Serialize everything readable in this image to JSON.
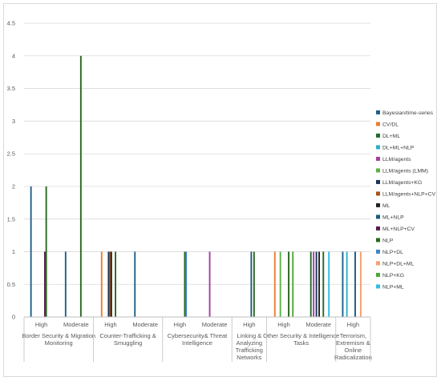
{
  "chart_data": {
    "type": "bar",
    "title": "",
    "xlabel": "",
    "ylabel": "",
    "ylim": [
      0,
      4.5
    ],
    "yticks": [
      "0",
      "0.5",
      "1",
      "1.5",
      "2",
      "2.5",
      "3",
      "3.5",
      "4",
      "4.5"
    ],
    "grid": true,
    "legend_position": "right",
    "groups": [
      {
        "label": "Border Security & Migration Monitoring",
        "lines": [
          "Border Security & Migration",
          "Monitoring"
        ],
        "subs": [
          "High",
          "Moderate"
        ]
      },
      {
        "label": "Counter-Trafficking & Smuggling",
        "lines": [
          "Counter-Trafficking &",
          "Smuggling"
        ],
        "subs": [
          "High",
          "Moderate"
        ]
      },
      {
        "label": "Cybersecurity& Threat Intelligence",
        "lines": [
          "Cybersecurity& Threat",
          "Intelligence"
        ],
        "subs": [
          "High",
          "Moderate"
        ]
      },
      {
        "label": "Linking & Analyzing Trafficking Networks",
        "lines": [
          "Linking &",
          "Analyzing",
          "Trafficking",
          "Networks"
        ],
        "subs": [
          "High"
        ]
      },
      {
        "label": "Other Security & Intelligence Tasks",
        "lines": [
          "Other Security & Intelligence",
          "Tasks"
        ],
        "subs": [
          "High",
          "Moderate"
        ]
      },
      {
        "label": "Terrorism, Extremism & Online Radicalization",
        "lines": [
          "Terrorism,",
          "Extremism &",
          "Online",
          "Radicalization"
        ],
        "subs": [
          "High"
        ]
      }
    ],
    "categories": [
      "High",
      "Moderate",
      "High",
      "Moderate",
      "High",
      "Moderate",
      "High",
      "High",
      "Moderate",
      "High"
    ],
    "series": [
      {
        "name": "Bayesian/time-series",
        "color": "#1f5f8b",
        "values": [
          2,
          1,
          0,
          1,
          0,
          0,
          0,
          0,
          0,
          1
        ]
      },
      {
        "name": "CV/DL",
        "color": "#ed7d31",
        "values": [
          0,
          0,
          1,
          0,
          0,
          0,
          0,
          1,
          0,
          0
        ]
      },
      {
        "name": "DL+ML",
        "color": "#1e6b2e",
        "values": [
          0,
          0,
          0,
          0,
          0,
          0,
          0,
          0,
          1,
          0
        ]
      },
      {
        "name": "DL+ML+NLP",
        "color": "#2bb0c9",
        "values": [
          0,
          0,
          0,
          0,
          0,
          0,
          0,
          0,
          0,
          1
        ]
      },
      {
        "name": "LLM/agents",
        "color": "#a33fa0",
        "values": [
          0,
          0,
          0,
          0,
          0,
          1,
          0,
          0,
          1,
          0
        ]
      },
      {
        "name": "LLM/agents (LMM)",
        "color": "#5bb146",
        "values": [
          0,
          0,
          0,
          0,
          0,
          0,
          0,
          1,
          0,
          0
        ]
      },
      {
        "name": "LLM/agents+KG",
        "color": "#1a3355",
        "values": [
          0,
          0,
          1,
          0,
          0,
          0,
          0,
          0,
          1,
          0
        ]
      },
      {
        "name": "LLM/agents+NLP+CV",
        "color": "#a8501c",
        "values": [
          0,
          0,
          1,
          0,
          0,
          0,
          0,
          0,
          0,
          0
        ]
      },
      {
        "name": "ML",
        "color": "#222222",
        "values": [
          0,
          0,
          1,
          0,
          0,
          0,
          0,
          0,
          1,
          0
        ]
      },
      {
        "name": "ML+NLP",
        "color": "#1a5c7a",
        "values": [
          0,
          0,
          0,
          0,
          0,
          0,
          1,
          0,
          0,
          1
        ]
      },
      {
        "name": "ML+NLP+CV",
        "color": "#5a1a50",
        "values": [
          1,
          0,
          0,
          0,
          0,
          0,
          0,
          0,
          0,
          0
        ]
      },
      {
        "name": "NLP",
        "color": "#2a6620",
        "values": [
          2,
          4,
          1,
          0,
          1,
          0,
          1,
          1,
          1,
          0
        ]
      },
      {
        "name": "NLP+DL",
        "color": "#3b86c6",
        "values": [
          0,
          0,
          0,
          0,
          1,
          0,
          0,
          0,
          0,
          0
        ]
      },
      {
        "name": "NLP+DL+ML",
        "color": "#f4a070",
        "values": [
          0,
          0,
          0,
          0,
          0,
          0,
          0,
          0,
          0,
          1
        ]
      },
      {
        "name": "NLP+KG",
        "color": "#4ca832",
        "values": [
          0,
          0,
          0,
          0,
          0,
          0,
          0,
          1,
          0,
          0
        ]
      },
      {
        "name": "NLP+ML",
        "color": "#33bde0",
        "values": [
          0,
          0,
          0,
          0,
          0,
          0,
          0,
          0,
          1,
          0
        ]
      }
    ]
  }
}
